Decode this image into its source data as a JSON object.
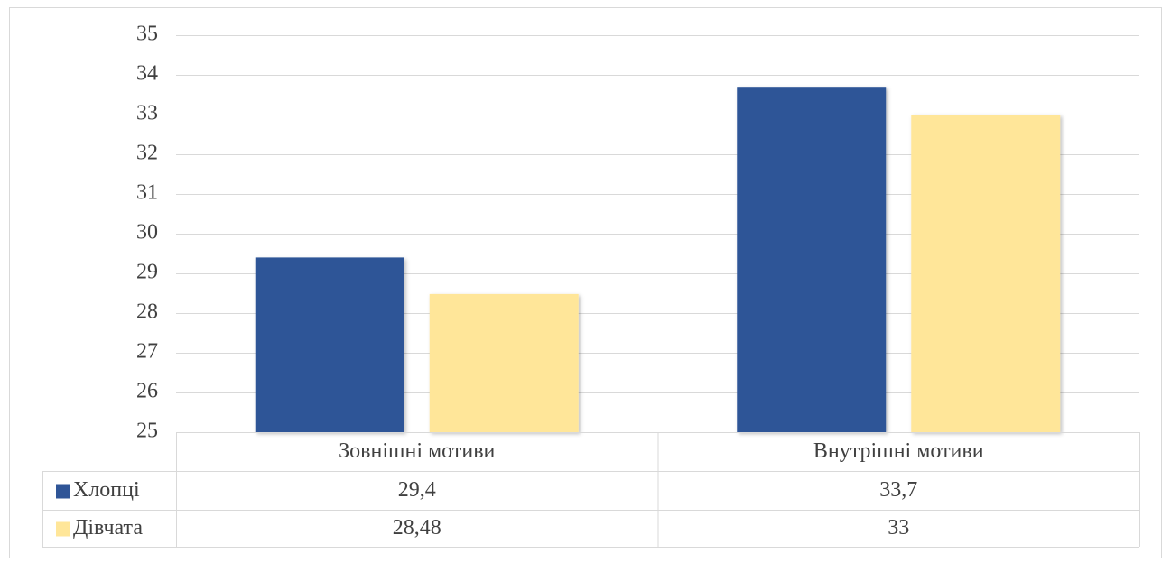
{
  "chart_data": {
    "type": "bar",
    "categories": [
      "Зовнішні мотиви",
      "Внутрішні мотиви"
    ],
    "series": [
      {
        "name": "Хлопці",
        "color": "#2f5597",
        "values": [
          29.4,
          33.7
        ],
        "value_labels": [
          "29,4",
          "33,7"
        ]
      },
      {
        "name": "Дівчата",
        "color": "#ffe699",
        "values": [
          28.48,
          33
        ],
        "value_labels": [
          "28,48",
          "33"
        ]
      }
    ],
    "ylim": [
      25,
      35
    ],
    "yticks": [
      25,
      26,
      27,
      28,
      29,
      30,
      31,
      32,
      33,
      34,
      35
    ],
    "grid": true,
    "data_table": true
  }
}
